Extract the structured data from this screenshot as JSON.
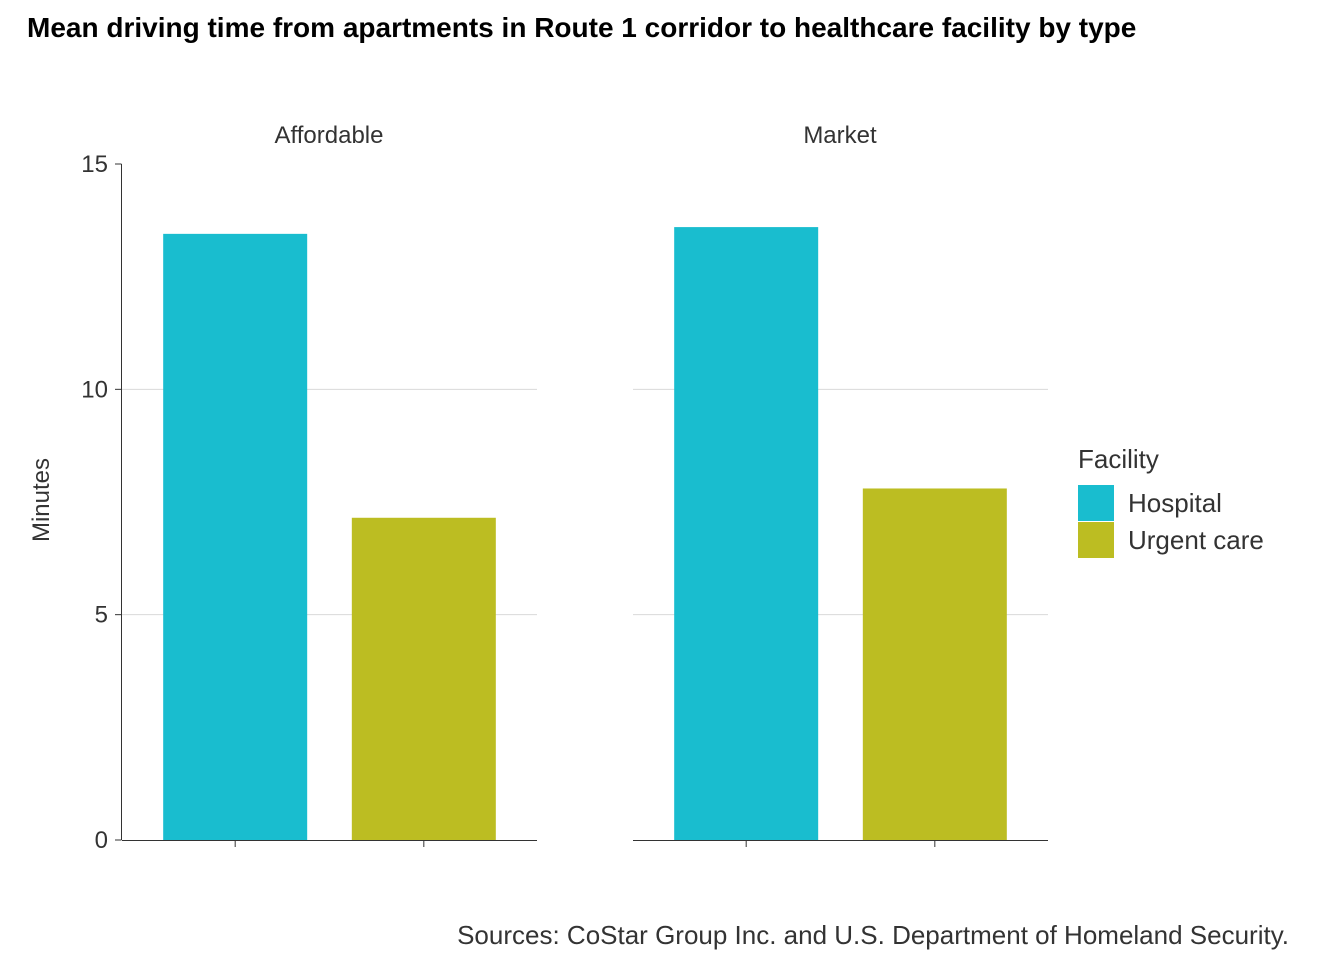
{
  "chart_data": {
    "type": "bar",
    "title": "Mean driving time from apartments in Route 1 corridor to healthcare facility by type",
    "ylabel": "Minutes",
    "xlabel": "",
    "ylim": [
      0,
      15
    ],
    "yticks": [
      0,
      5,
      10,
      15
    ],
    "facets": [
      {
        "label": "Affordable",
        "values": [
          13.45,
          7.15
        ]
      },
      {
        "label": "Market",
        "values": [
          13.6,
          7.8
        ]
      }
    ],
    "categories": [
      "Hospital",
      "Urgent care"
    ],
    "legend": {
      "title": "Facility",
      "position": "right",
      "items": [
        {
          "label": "Hospital",
          "color": "#19BDCF"
        },
        {
          "label": "Urgent care",
          "color": "#BCBD22"
        }
      ]
    },
    "grid": "horizontal",
    "caption": "Sources: CoStar Group Inc. and U.S. Department of Homeland Security."
  }
}
